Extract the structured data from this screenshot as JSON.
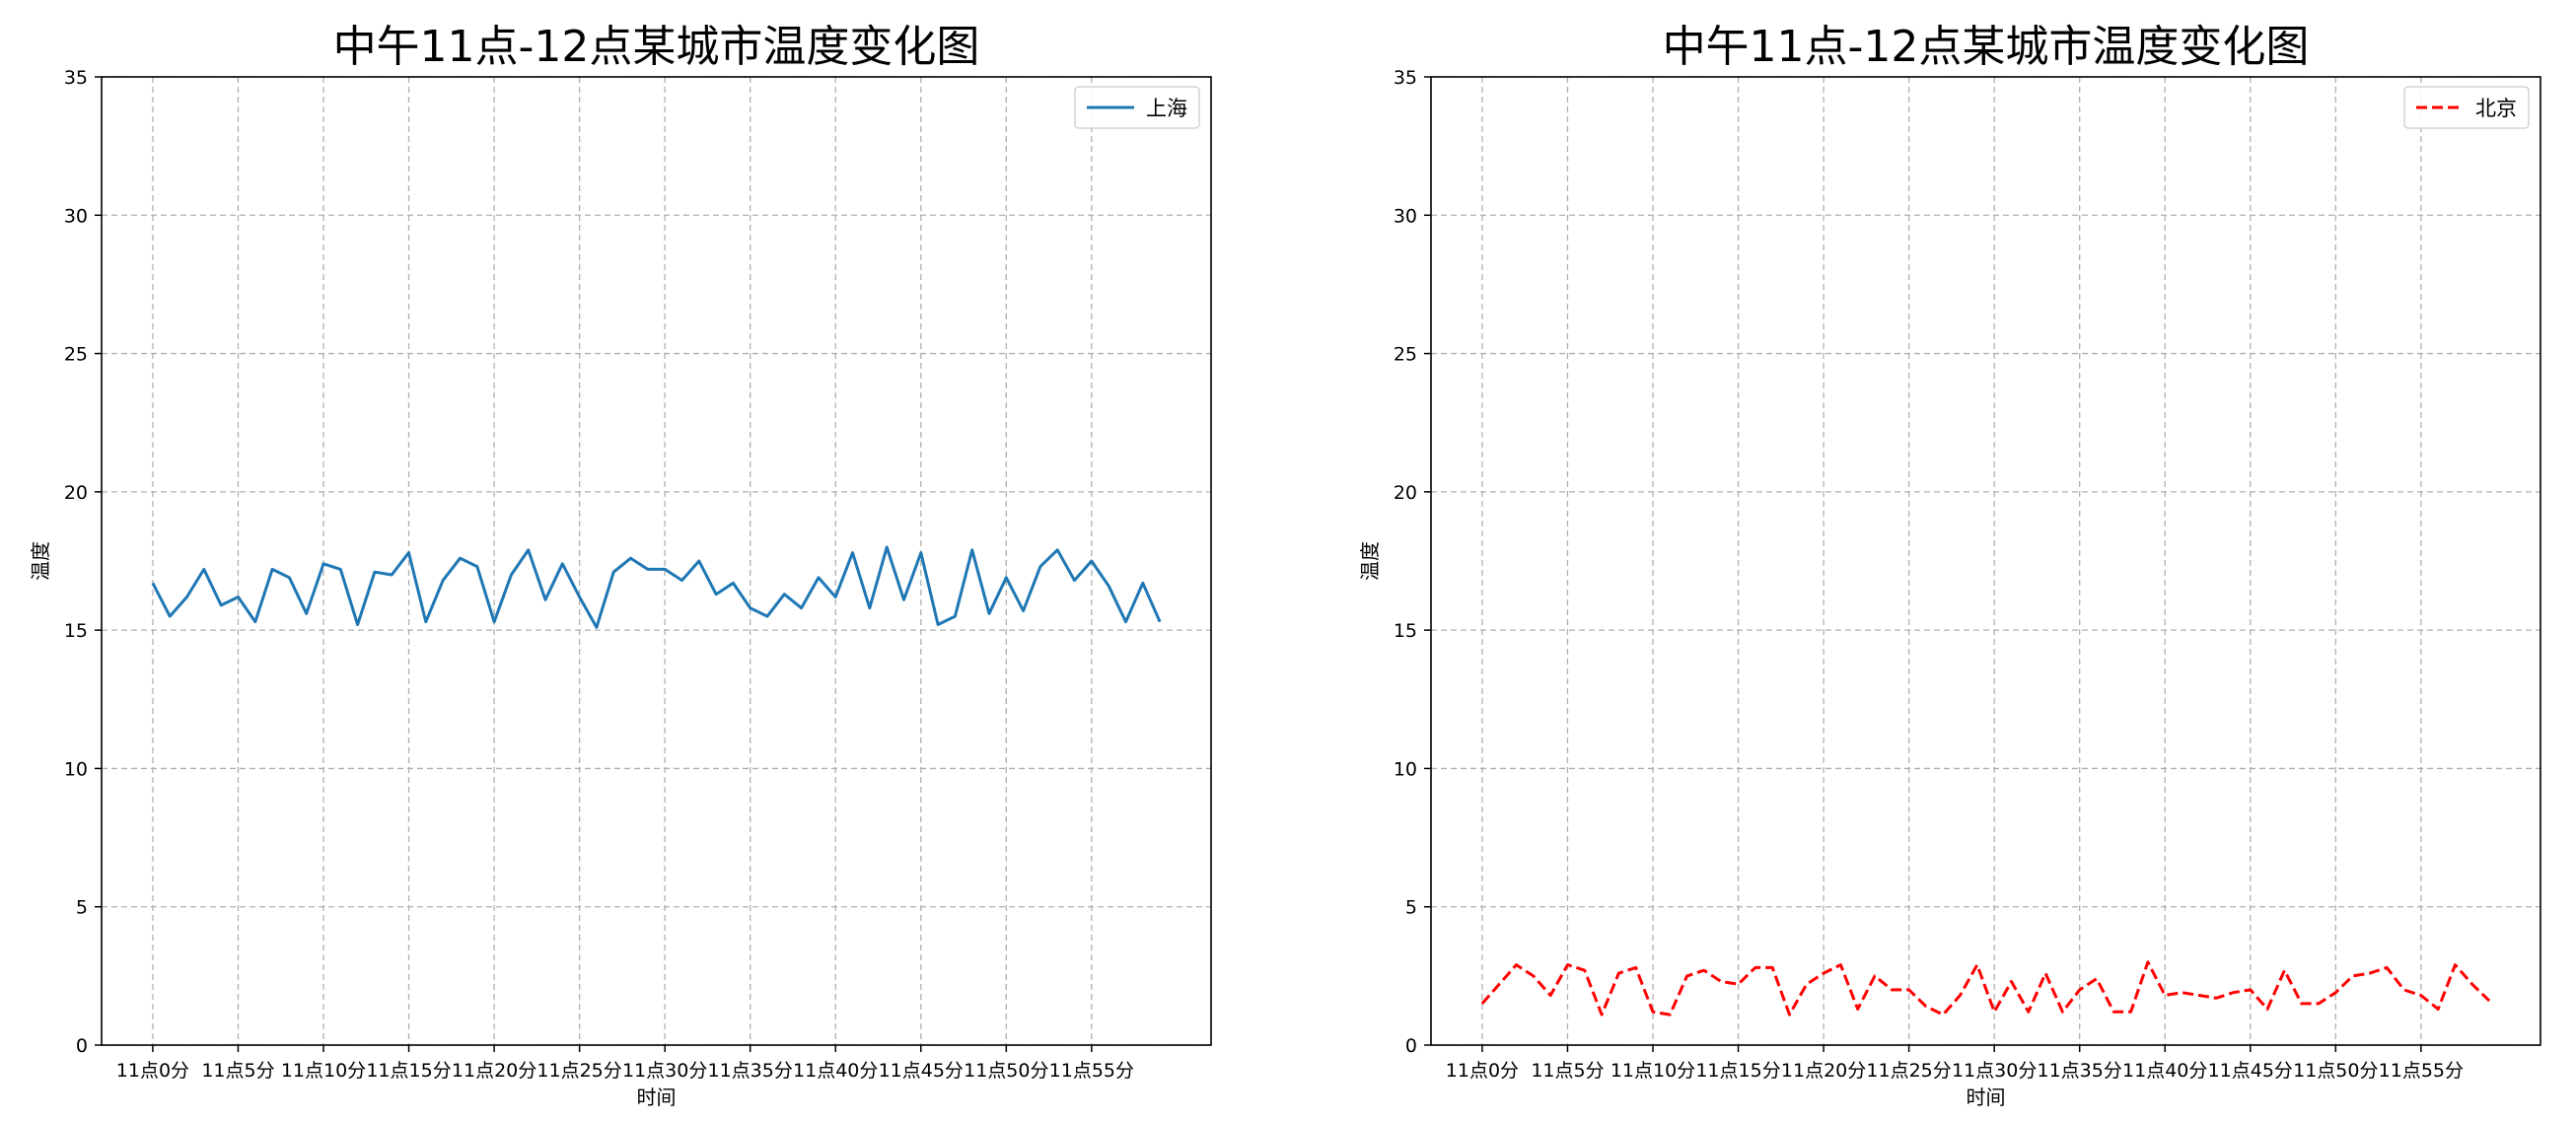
{
  "chart_data": [
    {
      "type": "line",
      "title": "中午11点-12点某城市温度变化图",
      "xlabel": "时间",
      "ylabel": "温度",
      "ylim": [
        0,
        35
      ],
      "yticks": [
        0,
        5,
        10,
        15,
        20,
        25,
        30,
        35
      ],
      "xlim": [
        -3,
        62
      ],
      "x": [
        0,
        1,
        2,
        3,
        4,
        5,
        6,
        7,
        8,
        9,
        10,
        11,
        12,
        13,
        14,
        15,
        16,
        17,
        18,
        19,
        20,
        21,
        22,
        23,
        24,
        25,
        26,
        27,
        28,
        29,
        30,
        31,
        32,
        33,
        34,
        35,
        36,
        37,
        38,
        39,
        40,
        41,
        42,
        43,
        44,
        45,
        46,
        47,
        48,
        49,
        50,
        51,
        52,
        53,
        54,
        55,
        56,
        57,
        58,
        59
      ],
      "xticks": [
        0,
        5,
        10,
        15,
        20,
        25,
        30,
        35,
        40,
        45,
        50,
        55
      ],
      "xtick_labels": [
        "11点0分",
        "11点5分",
        "11点10分",
        "11点15分",
        "11点20分",
        "11点25分",
        "11点30分",
        "11点35分",
        "11点40分",
        "11点45分",
        "11点50分",
        "11点55分"
      ],
      "grid": true,
      "legend_position": "top-right",
      "series": [
        {
          "name": "上海",
          "color": "#1f77b4",
          "style": "solid",
          "values": [
            16.7,
            15.5,
            16.2,
            17.2,
            15.9,
            16.2,
            15.3,
            17.2,
            16.9,
            15.6,
            17.4,
            17.2,
            15.2,
            17.1,
            17.0,
            17.8,
            15.3,
            16.8,
            17.6,
            17.3,
            15.3,
            17.0,
            17.9,
            16.1,
            17.4,
            16.2,
            15.1,
            17.1,
            17.6,
            17.2,
            17.2,
            16.8,
            17.5,
            16.3,
            16.7,
            15.8,
            15.5,
            16.3,
            15.8,
            16.9,
            16.2,
            17.8,
            15.8,
            18.0,
            16.1,
            17.8,
            15.2,
            15.5,
            17.9,
            15.6,
            16.9,
            15.7,
            17.3,
            17.9,
            16.8,
            17.5,
            16.6,
            15.3,
            16.7,
            15.3
          ]
        }
      ]
    },
    {
      "type": "line",
      "title": "中午11点-12点某城市温度变化图",
      "xlabel": "时间",
      "ylabel": "温度",
      "ylim": [
        0,
        35
      ],
      "yticks": [
        0,
        5,
        10,
        15,
        20,
        25,
        30,
        35
      ],
      "xlim": [
        -3,
        62
      ],
      "x": [
        0,
        1,
        2,
        3,
        4,
        5,
        6,
        7,
        8,
        9,
        10,
        11,
        12,
        13,
        14,
        15,
        16,
        17,
        18,
        19,
        20,
        21,
        22,
        23,
        24,
        25,
        26,
        27,
        28,
        29,
        30,
        31,
        32,
        33,
        34,
        35,
        36,
        37,
        38,
        39,
        40,
        41,
        42,
        43,
        44,
        45,
        46,
        47,
        48,
        49,
        50,
        51,
        52,
        53,
        54,
        55,
        56,
        57,
        58,
        59
      ],
      "xticks": [
        0,
        5,
        10,
        15,
        20,
        25,
        30,
        35,
        40,
        45,
        50,
        55
      ],
      "xtick_labels": [
        "11点0分",
        "11点5分",
        "11点10分",
        "11点15分",
        "11点20分",
        "11点25分",
        "11点30分",
        "11点35分",
        "11点40分",
        "11点45分",
        "11点50分",
        "11点55分"
      ],
      "grid": true,
      "legend_position": "top-right",
      "series": [
        {
          "name": "北京",
          "color": "#ff0000",
          "style": "dashed",
          "values": [
            1.5,
            2.2,
            2.9,
            2.5,
            1.8,
            2.9,
            2.7,
            1.1,
            2.6,
            2.8,
            1.2,
            1.1,
            2.5,
            2.7,
            2.3,
            2.2,
            2.8,
            2.8,
            1.1,
            2.2,
            2.6,
            2.9,
            1.3,
            2.5,
            2.0,
            2.0,
            1.4,
            1.1,
            1.8,
            2.9,
            1.2,
            2.3,
            1.2,
            2.6,
            1.2,
            2.0,
            2.4,
            1.2,
            1.2,
            3.0,
            1.8,
            1.9,
            1.8,
            1.7,
            1.9,
            2.0,
            1.3,
            2.7,
            1.5,
            1.5,
            1.9,
            2.5,
            2.6,
            2.8,
            2.0,
            1.8,
            1.3,
            2.9,
            2.2,
            1.6
          ]
        }
      ]
    }
  ]
}
